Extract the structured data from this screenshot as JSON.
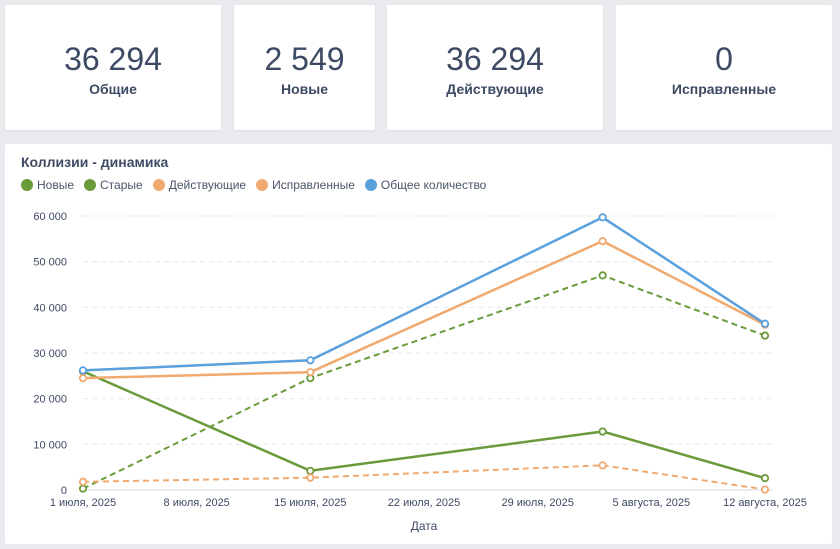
{
  "kpis": [
    {
      "value": "36 294",
      "label": "Общие"
    },
    {
      "value": "2 549",
      "label": "Новые"
    },
    {
      "value": "36 294",
      "label": "Действующие"
    },
    {
      "value": "0",
      "label": "Исправленные"
    }
  ],
  "chart_data": {
    "type": "line",
    "title": "Коллизии - динамика",
    "xlabel": "Дата",
    "ylabel": "",
    "x_ticks": [
      "1 июля, 2025",
      "8 июля, 2025",
      "15 июля, 2025",
      "22 июля, 2025",
      "29 июля, 2025",
      "5 августа, 2025",
      "12 августа, 2025"
    ],
    "x_range": [
      "2025-07-01",
      "2025-08-12"
    ],
    "ylim": [
      0,
      60000
    ],
    "y_ticks": [
      "0",
      "10 000",
      "20 000",
      "30 000",
      "40 000",
      "50 000",
      "60 000"
    ],
    "grid": "horizontal dashed",
    "legend_position": "top-left",
    "series": [
      {
        "name": "Новые",
        "color": "#6a9a3a",
        "dashed": false,
        "points": [
          [
            "2025-07-01",
            26000
          ],
          [
            "2025-07-15",
            4200
          ],
          [
            "2025-08-02",
            12800
          ],
          [
            "2025-08-12",
            2600
          ]
        ]
      },
      {
        "name": "Старые",
        "color": "#6a9a3a",
        "dashed": true,
        "points": [
          [
            "2025-07-01",
            300
          ],
          [
            "2025-07-15",
            24500
          ],
          [
            "2025-08-02",
            47000
          ],
          [
            "2025-08-12",
            33800
          ]
        ]
      },
      {
        "name": "Действующие",
        "color": "#f0a96e",
        "dashed": false,
        "points": [
          [
            "2025-07-01",
            24500
          ],
          [
            "2025-07-15",
            25800
          ],
          [
            "2025-08-02",
            54500
          ],
          [
            "2025-08-12",
            36200
          ]
        ]
      },
      {
        "name": "Исправленные",
        "color": "#f0a96e",
        "dashed": true,
        "points": [
          [
            "2025-07-01",
            1800
          ],
          [
            "2025-07-15",
            2700
          ],
          [
            "2025-08-02",
            5400
          ],
          [
            "2025-08-12",
            100
          ]
        ]
      },
      {
        "name": "Общее количество",
        "color": "#5aa0dc",
        "dashed": false,
        "points": [
          [
            "2025-07-01",
            26200
          ],
          [
            "2025-07-15",
            28400
          ],
          [
            "2025-08-02",
            59700
          ],
          [
            "2025-08-12",
            36400
          ]
        ]
      }
    ]
  }
}
